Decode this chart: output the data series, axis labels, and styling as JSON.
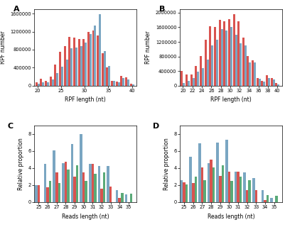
{
  "panel_A": {
    "x": [
      20,
      21,
      22,
      23,
      24,
      25,
      26,
      27,
      28,
      29,
      30,
      31,
      32,
      33,
      34,
      35,
      36,
      37,
      38,
      39,
      40
    ],
    "red": [
      80000,
      160000,
      110000,
      200000,
      470000,
      750000,
      870000,
      1080000,
      1070000,
      1030000,
      1030000,
      1200000,
      1230000,
      1110000,
      720000,
      410000,
      110000,
      90000,
      210000,
      180000,
      50000
    ],
    "blue": [
      50000,
      80000,
      75000,
      130000,
      280000,
      420000,
      580000,
      830000,
      840000,
      870000,
      960000,
      1150000,
      1330000,
      1580000,
      770000,
      430000,
      100000,
      80000,
      175000,
      145000,
      30000
    ],
    "ylabel": "RPF number",
    "xlabel": "RPF length (nt)",
    "ylim": [
      0,
      1700000
    ],
    "yticks": [
      0,
      400000,
      800000,
      1200000,
      1600000
    ],
    "yticklabels": [
      "0",
      "400000",
      "800000",
      "1200000",
      "1600000"
    ],
    "xticks": [
      20,
      25,
      30,
      35,
      40
    ]
  },
  "panel_B": {
    "x": [
      20,
      21,
      22,
      23,
      24,
      25,
      26,
      27,
      28,
      29,
      30,
      31,
      32,
      33,
      34,
      35,
      36,
      37,
      38,
      39,
      40
    ],
    "red": [
      400000,
      310000,
      310000,
      530000,
      820000,
      1250000,
      1620000,
      1610000,
      1810000,
      1760000,
      1820000,
      1960000,
      1760000,
      1310000,
      820000,
      690000,
      200000,
      130000,
      290000,
      210000,
      70000
    ],
    "blue": [
      70000,
      130000,
      210000,
      390000,
      490000,
      710000,
      1110000,
      1260000,
      1560000,
      1510000,
      1610000,
      1390000,
      1160000,
      1110000,
      645000,
      645000,
      185000,
      105000,
      210000,
      175000,
      42000
    ],
    "ylabel": "RPF number",
    "xlabel": "RPF length (nt)",
    "ylim": [
      0,
      2100000
    ],
    "yticks": [
      0,
      400000,
      800000,
      1200000,
      1600000,
      2000000
    ],
    "yticklabels": [
      "0",
      "400000",
      "800000",
      "1200000",
      "1600000",
      "2000000"
    ],
    "xticks": [
      20,
      22,
      24,
      26,
      28,
      30,
      32,
      34,
      36,
      38,
      40
    ]
  },
  "panel_C": {
    "x": [
      25,
      26,
      27,
      28,
      29,
      30,
      31,
      32,
      33,
      34,
      35
    ],
    "blue": [
      2.0,
      4.5,
      6.1,
      4.6,
      6.8,
      8.0,
      4.5,
      4.2,
      4.2,
      1.4,
      0.9
    ],
    "red": [
      2.0,
      1.7,
      3.5,
      4.7,
      3.0,
      3.5,
      4.5,
      1.6,
      1.8,
      0.5,
      0.0
    ],
    "green": [
      0.0,
      2.5,
      2.2,
      3.8,
      4.3,
      2.5,
      3.3,
      3.5,
      0.0,
      1.1,
      1.0
    ],
    "ylabel": "Relative proportion",
    "xlabel": "Reads length (nt)",
    "ylim": [
      0,
      9
    ],
    "yticks": [
      0,
      2,
      4,
      6,
      8
    ]
  },
  "panel_D": {
    "x": [
      25,
      26,
      27,
      28,
      29,
      30,
      31,
      32,
      33,
      34,
      35
    ],
    "blue": [
      2.6,
      5.3,
      6.9,
      4.6,
      7.0,
      7.3,
      3.6,
      3.5,
      2.8,
      1.4,
      0.5
    ],
    "red": [
      2.3,
      2.2,
      4.1,
      5.0,
      3.1,
      3.6,
      3.6,
      1.4,
      1.4,
      0.2,
      0.0
    ],
    "green": [
      2.1,
      3.0,
      2.6,
      4.1,
      4.3,
      2.5,
      3.0,
      2.6,
      0.0,
      0.8,
      0.7
    ],
    "ylabel": "Relative proportion",
    "xlabel": "Reads length (nt)",
    "ylim": [
      0,
      9
    ],
    "yticks": [
      0,
      2,
      4,
      6,
      8
    ]
  },
  "color_red": "#d9534f",
  "color_blue": "#7aa6c2",
  "color_green": "#5aaa78",
  "bg_color": "#ffffff",
  "label_fontsize": 5.5,
  "tick_fontsize": 4.8,
  "panel_labels": [
    "A",
    "B",
    "C",
    "D"
  ]
}
